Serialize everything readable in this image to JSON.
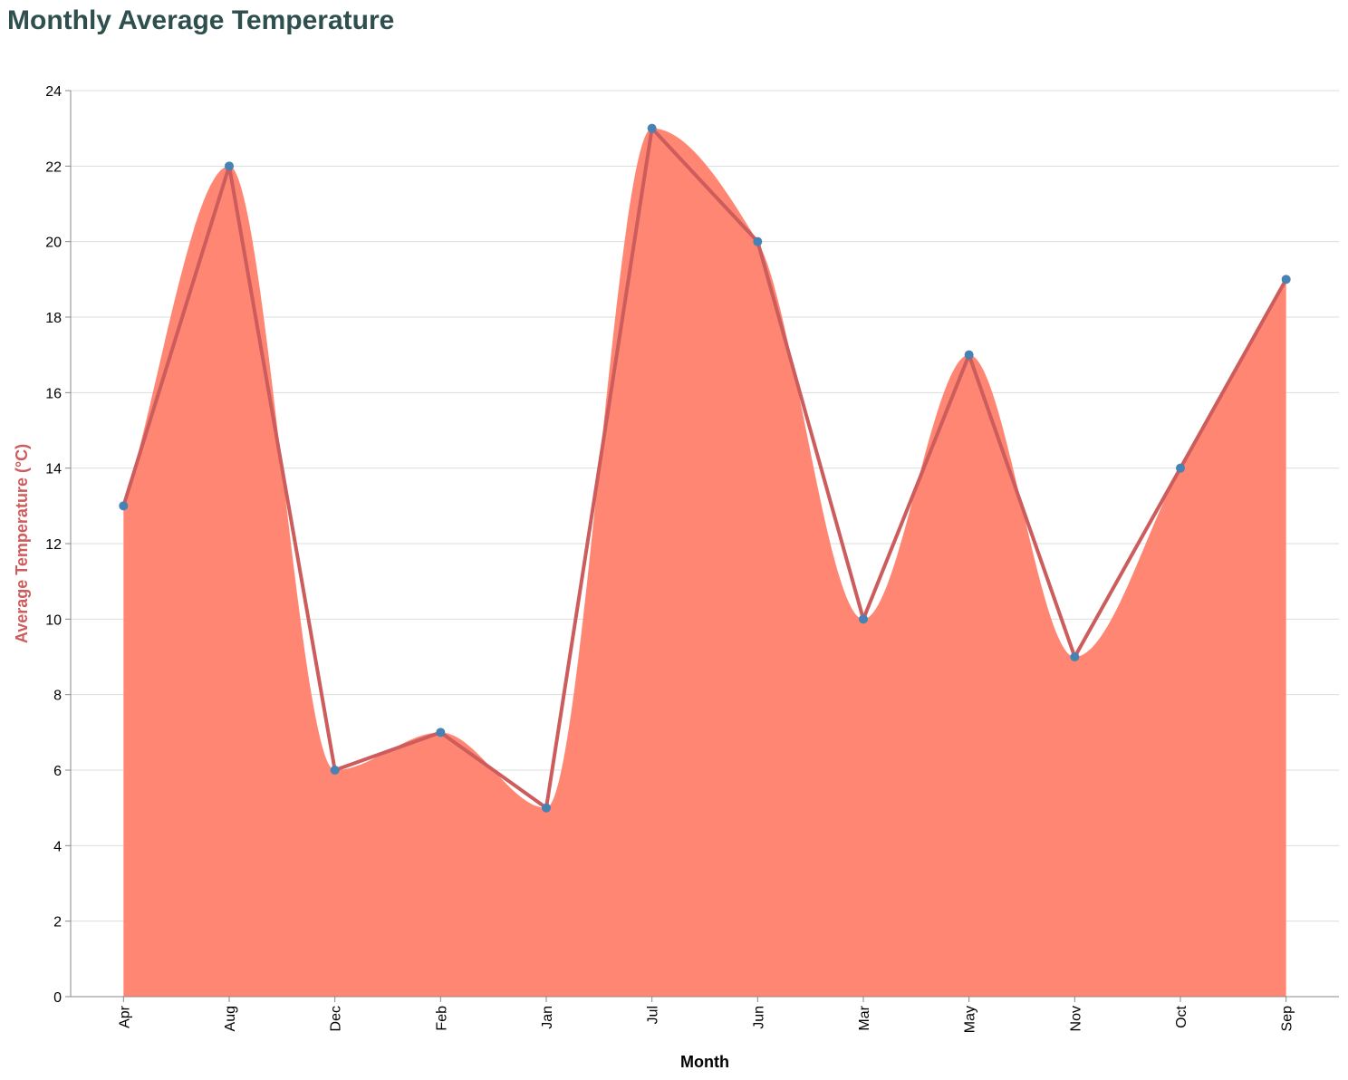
{
  "chart_data": {
    "type": "area",
    "title": "Monthly Average Temperature",
    "xlabel": "Month",
    "ylabel": "Average Temperature (°C)",
    "categories": [
      "Apr",
      "Aug",
      "Dec",
      "Feb",
      "Jan",
      "Jul",
      "Jun",
      "Mar",
      "May",
      "Nov",
      "Oct",
      "Sep"
    ],
    "values": [
      13,
      22,
      6,
      7,
      5,
      23,
      20,
      10,
      17,
      9,
      14,
      19
    ],
    "ylim": [
      0,
      24
    ],
    "yticks": [
      0,
      2,
      4,
      6,
      8,
      10,
      12,
      14,
      16,
      18,
      20,
      22,
      24
    ],
    "grid": true,
    "colors": {
      "area": "#ff7f6a",
      "line": "#cd5c5c",
      "point": "#4682b4",
      "title": "#2f4f4f",
      "ylabel": "#cd5c5c",
      "grid": "#dddddd",
      "axis": "#888888"
    }
  }
}
